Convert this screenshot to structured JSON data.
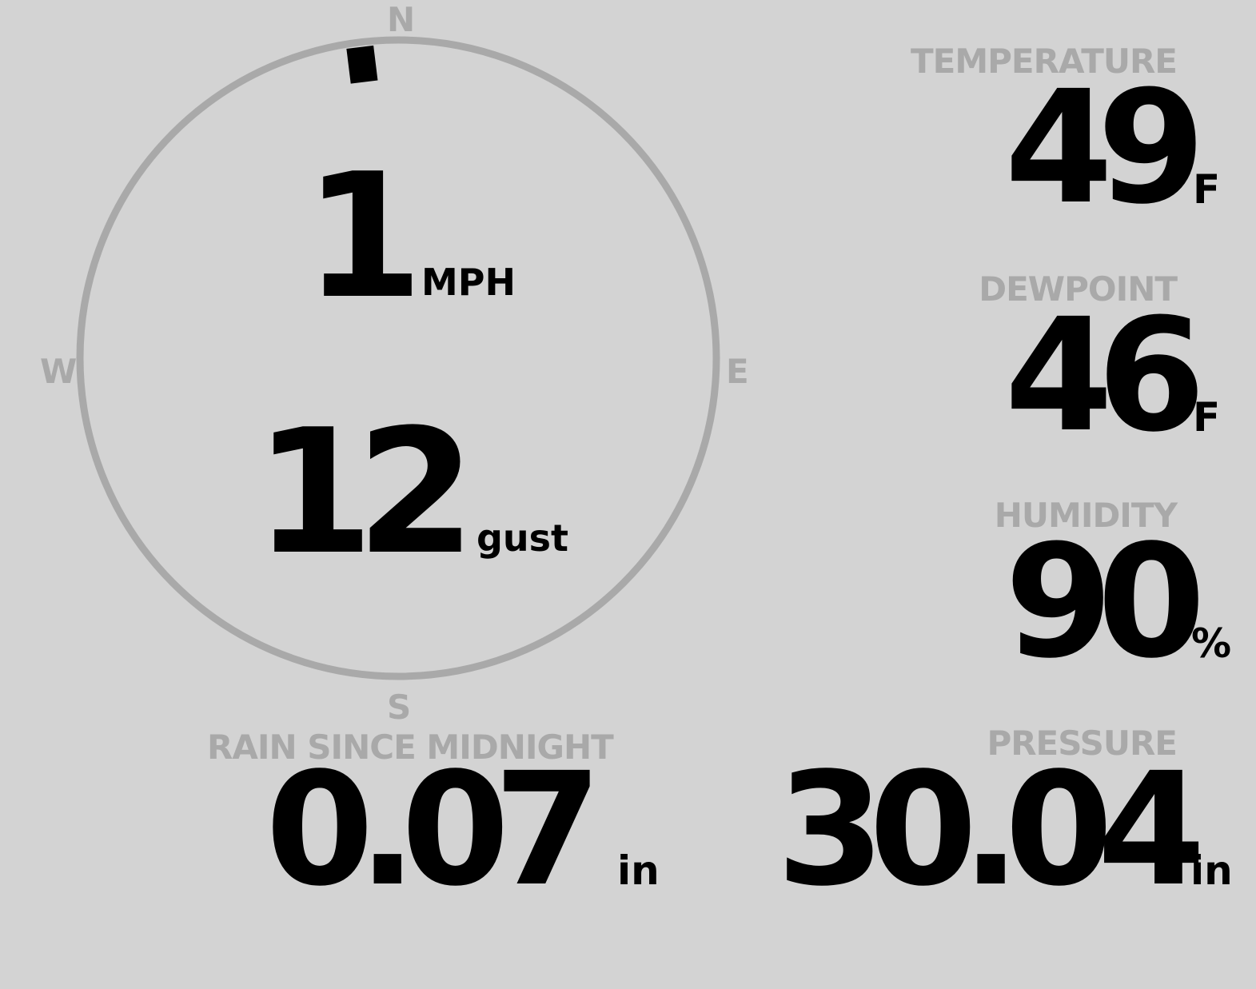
{
  "wind": {
    "speed": "1",
    "speed_unit": "MPH",
    "gust": "12",
    "gust_unit": "gust",
    "direction_degrees": 353,
    "compass": {
      "n": "N",
      "e": "E",
      "s": "S",
      "w": "W"
    },
    "ring_color": "#a9a9a9",
    "indicator_color": "#000000"
  },
  "temperature": {
    "label": "TEMPERATURE",
    "value": "49",
    "unit": "F"
  },
  "dewpoint": {
    "label": "DEWPOINT",
    "value": "46",
    "unit": "F"
  },
  "humidity": {
    "label": "HUMIDITY",
    "value": "90",
    "unit": "%"
  },
  "rain": {
    "label": "RAIN SINCE MIDNIGHT",
    "value": "0.07",
    "unit": "in"
  },
  "pressure": {
    "label": "PRESSURE",
    "value": "30.04",
    "unit": "in"
  }
}
